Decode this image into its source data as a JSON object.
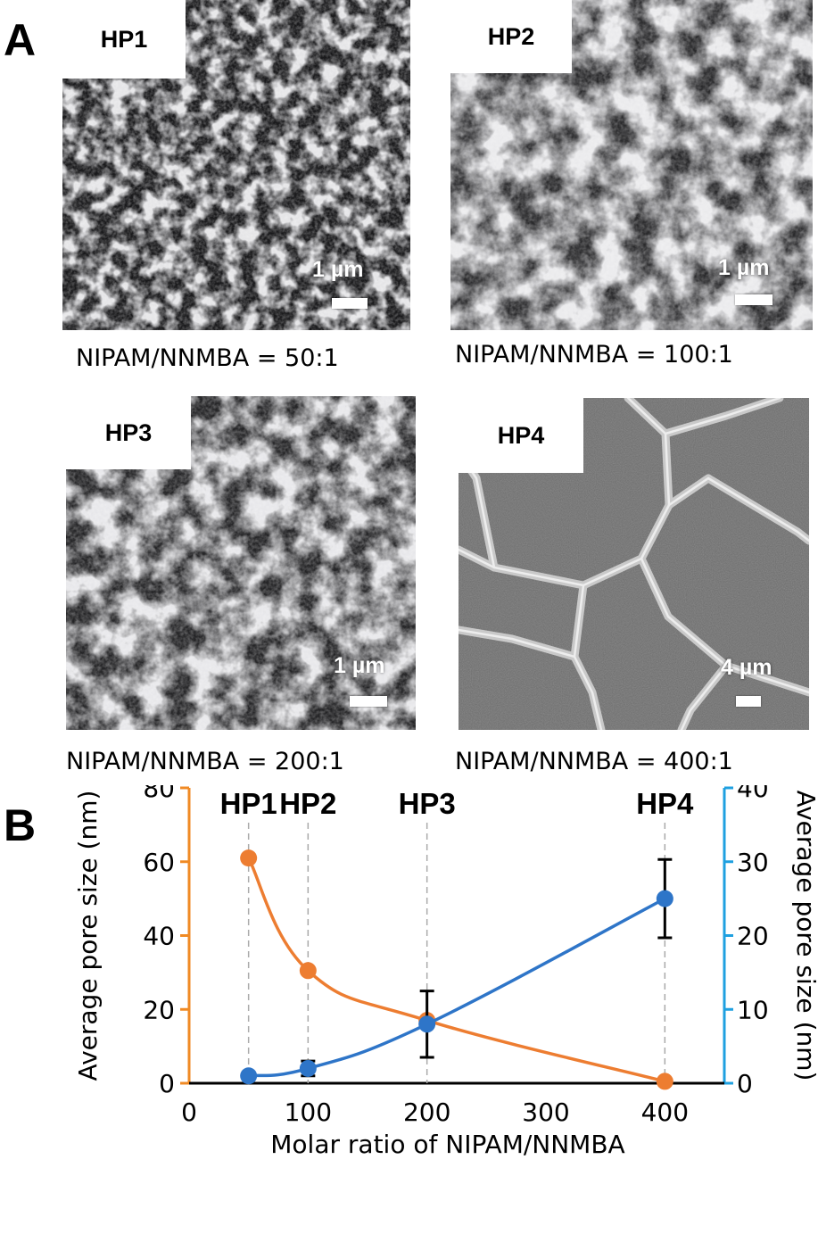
{
  "panel_a": {
    "letter": "A",
    "images": [
      {
        "label": "HP1",
        "scale_text": "1 µm",
        "ratio": "NIPAM/NNMBA = 50:1"
      },
      {
        "label": "HP2",
        "scale_text": "1 µm",
        "ratio": "NIPAM/NNMBA = 100:1"
      },
      {
        "label": "HP3",
        "scale_text": "1 µm",
        "ratio": "NIPAM/NNMBA = 200:1"
      },
      {
        "label": "HP4",
        "scale_text": "4 µm",
        "ratio": "NIPAM/NNMBA = 400:1"
      }
    ]
  },
  "panel_b": {
    "letter": "B"
  },
  "chart_data": {
    "type": "line",
    "xlabel": "Molar ratio of NIPAM/NNMBA",
    "ylabel_left": "Average pore size (nm)",
    "ylabel_right": "Average pore size (nm)",
    "xlim": [
      0,
      450
    ],
    "xticks": [
      0,
      100,
      200,
      300,
      400
    ],
    "ylim_left": [
      0,
      80
    ],
    "yticks_left": [
      0,
      20,
      40,
      60,
      80
    ],
    "ylim_right": [
      0,
      40
    ],
    "yticks_right": [
      0,
      10,
      20,
      30,
      40
    ],
    "grid": false,
    "top_labels": [
      {
        "x": 50,
        "text": "HP1"
      },
      {
        "x": 100,
        "text": "HP2"
      },
      {
        "x": 200,
        "text": "HP3"
      },
      {
        "x": 400,
        "text": "HP4"
      }
    ],
    "series": [
      {
        "axis": "left",
        "color": "#ED7D31",
        "x": [
          50,
          100,
          200,
          400
        ],
        "y": [
          61,
          30.5,
          17,
          0.5
        ],
        "err": [
          0,
          0,
          0,
          0
        ]
      },
      {
        "axis": "right",
        "color": "#2E75C8",
        "x": [
          50,
          100,
          200,
          400
        ],
        "y": [
          1,
          2,
          8,
          25
        ],
        "err": [
          0,
          1,
          4.5,
          5.3
        ]
      }
    ],
    "left_axis_color": "#F08A24",
    "right_axis_color": "#1FA0E0"
  }
}
